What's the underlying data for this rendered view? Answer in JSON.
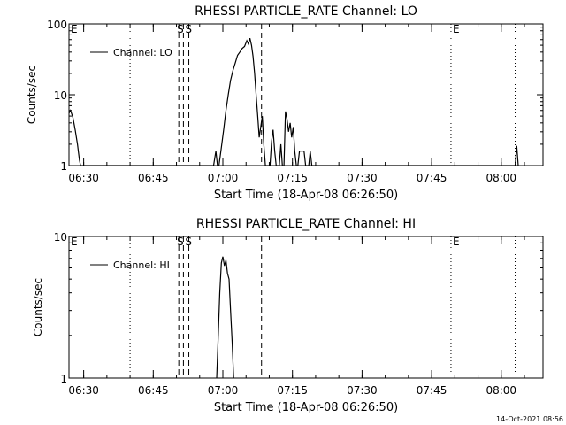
{
  "footer": {
    "timestamp": "14-Oct-2021 08:56"
  },
  "chart_data": [
    {
      "type": "line",
      "title": "RHESSI PARTICLE_RATE Channel: LO",
      "xlabel": "Start Time (18-Apr-08 06:26:50)",
      "ylabel": "Counts/sec",
      "yscale": "log",
      "ylim": [
        1,
        100
      ],
      "yticks": [
        "1",
        "10",
        "100"
      ],
      "xlim": [
        "06:26:50",
        "08:09:00"
      ],
      "xticks": [
        "06:30",
        "06:45",
        "07:00",
        "07:15",
        "07:30",
        "07:45",
        "08:00"
      ],
      "legend": {
        "position": "top-left",
        "entries": [
          "Channel: LO"
        ]
      },
      "markers": [
        {
          "label": "E",
          "time": "06:26:50",
          "style": "dotted"
        },
        {
          "label": "",
          "time": "06:40:00",
          "style": "dotted"
        },
        {
          "label": "S",
          "time": "06:50:30",
          "style": "dashed"
        },
        {
          "label": "S",
          "time": "06:51:30",
          "style": "dashed"
        },
        {
          "label": "",
          "time": "06:52:40",
          "style": "dashed"
        },
        {
          "label": "",
          "time": "07:08:20",
          "style": "dashed"
        },
        {
          "label": "E",
          "time": "07:49:10",
          "style": "dotted"
        },
        {
          "label": "",
          "time": "08:03:00",
          "style": "dotted"
        }
      ],
      "series": [
        {
          "name": "Channel: LO",
          "points": [
            [
              "06:26:50",
              5.5
            ],
            [
              "06:27:10",
              6
            ],
            [
              "06:27:40",
              4.8
            ],
            [
              "06:28:10",
              3.2
            ],
            [
              "06:28:40",
              2
            ],
            [
              "06:29:05",
              1.2
            ],
            [
              "06:29:20",
              1
            ],
            [
              "06:58:00",
              1
            ],
            [
              "06:58:30",
              1.6
            ],
            [
              "06:58:50",
              1
            ],
            [
              "06:59:10",
              1
            ],
            [
              "06:59:40",
              1.8
            ],
            [
              "07:00:10",
              3.2
            ],
            [
              "07:00:40",
              6
            ],
            [
              "07:01:10",
              10
            ],
            [
              "07:01:40",
              16
            ],
            [
              "07:02:10",
              22
            ],
            [
              "07:02:40",
              28
            ],
            [
              "07:03:10",
              36
            ],
            [
              "07:03:40",
              40
            ],
            [
              "07:04:10",
              45
            ],
            [
              "07:04:40",
              48
            ],
            [
              "07:05:10",
              58
            ],
            [
              "07:05:30",
              52
            ],
            [
              "07:05:50",
              63
            ],
            [
              "07:06:10",
              50
            ],
            [
              "07:06:30",
              35
            ],
            [
              "07:06:50",
              20
            ],
            [
              "07:07:10",
              10
            ],
            [
              "07:07:30",
              5
            ],
            [
              "07:07:50",
              2.5
            ],
            [
              "07:08:10",
              3.5
            ],
            [
              "07:08:30",
              5
            ],
            [
              "07:08:50",
              2
            ],
            [
              "07:09:10",
              1
            ],
            [
              "07:10:10",
              1
            ],
            [
              "07:10:30",
              2.2
            ],
            [
              "07:10:50",
              3.2
            ],
            [
              "07:11:10",
              1.6
            ],
            [
              "07:11:30",
              1
            ],
            [
              "07:12:10",
              1
            ],
            [
              "07:12:30",
              2
            ],
            [
              "07:12:50",
              1
            ],
            [
              "07:13:10",
              1
            ],
            [
              "07:13:30",
              5.8
            ],
            [
              "07:13:50",
              4.5
            ],
            [
              "07:14:10",
              3
            ],
            [
              "07:14:30",
              4
            ],
            [
              "07:14:50",
              2.5
            ],
            [
              "07:15:10",
              3.5
            ],
            [
              "07:15:30",
              1.6
            ],
            [
              "07:15:50",
              1
            ],
            [
              "07:16:10",
              1
            ],
            [
              "07:16:30",
              1.6
            ],
            [
              "07:17:30",
              1.6
            ],
            [
              "07:17:50",
              1
            ],
            [
              "07:18:30",
              1
            ],
            [
              "07:18:50",
              1.6
            ],
            [
              "07:19:10",
              1
            ],
            [
              "08:03:00",
              1
            ],
            [
              "08:03:20",
              1.9
            ],
            [
              "08:03:40",
              1
            ]
          ]
        }
      ]
    },
    {
      "type": "line",
      "title": "RHESSI PARTICLE_RATE Channel: HI",
      "xlabel": "Start Time (18-Apr-08 06:26:50)",
      "ylabel": "Counts/sec",
      "yscale": "log",
      "ylim": [
        1,
        10
      ],
      "yticks": [
        "1",
        "10"
      ],
      "xlim": [
        "06:26:50",
        "08:09:00"
      ],
      "xticks": [
        "06:30",
        "06:45",
        "07:00",
        "07:15",
        "07:30",
        "07:45",
        "08:00"
      ],
      "legend": {
        "position": "top-left",
        "entries": [
          "Channel: HI"
        ]
      },
      "markers": [
        {
          "label": "E",
          "time": "06:26:50",
          "style": "dotted"
        },
        {
          "label": "",
          "time": "06:40:00",
          "style": "dotted"
        },
        {
          "label": "S",
          "time": "06:50:30",
          "style": "dashed"
        },
        {
          "label": "S",
          "time": "06:51:30",
          "style": "dashed"
        },
        {
          "label": "",
          "time": "06:52:40",
          "style": "dashed"
        },
        {
          "label": "",
          "time": "07:08:20",
          "style": "dashed"
        },
        {
          "label": "E",
          "time": "07:49:10",
          "style": "dotted"
        },
        {
          "label": "",
          "time": "08:03:00",
          "style": "dotted"
        }
      ],
      "series": [
        {
          "name": "Channel: HI",
          "points": [
            [
              "06:58:40",
              1
            ],
            [
              "06:59:00",
              2
            ],
            [
              "06:59:20",
              4
            ],
            [
              "06:59:40",
              6.5
            ],
            [
              "07:00:00",
              7.2
            ],
            [
              "07:00:20",
              6.2
            ],
            [
              "07:00:40",
              6.8
            ],
            [
              "07:01:00",
              5.5
            ],
            [
              "07:01:20",
              5
            ],
            [
              "07:01:40",
              3
            ],
            [
              "07:02:00",
              1.8
            ],
            [
              "07:02:20",
              1
            ]
          ]
        }
      ]
    }
  ]
}
